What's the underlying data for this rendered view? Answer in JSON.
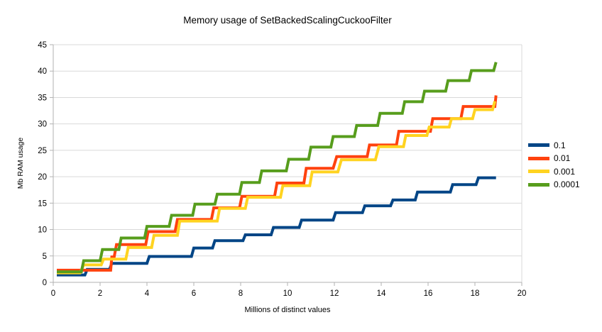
{
  "chart_data": {
    "type": "line",
    "title": "Memory usage of SetBackedScalingCuckooFilter",
    "xlabel": "Millions of distinct values",
    "ylabel": "Mb RAM usage",
    "xlim": [
      0,
      20
    ],
    "ylim": [
      0,
      45
    ],
    "x_ticks": [
      0,
      2,
      4,
      6,
      8,
      10,
      12,
      14,
      16,
      18,
      20
    ],
    "y_ticks": [
      0,
      5,
      10,
      15,
      20,
      25,
      30,
      35,
      40,
      45
    ],
    "grid": "horizontal",
    "legend_position": "right",
    "axis_color": "#b2b2b2",
    "gridline_color": "#d9d9d9",
    "line_shape": "steps",
    "series": [
      {
        "name": "0.1",
        "color": "#004586",
        "points": [
          [
            0.15,
            1.4
          ],
          [
            1.35,
            1.4
          ],
          [
            1.45,
            2.45
          ],
          [
            2.4,
            2.45
          ],
          [
            2.5,
            3.6
          ],
          [
            4.0,
            3.6
          ],
          [
            4.1,
            4.9
          ],
          [
            5.9,
            4.9
          ],
          [
            6.0,
            6.5
          ],
          [
            6.8,
            6.5
          ],
          [
            6.9,
            7.9
          ],
          [
            8.1,
            7.9
          ],
          [
            8.2,
            9.0
          ],
          [
            9.3,
            9.0
          ],
          [
            9.4,
            10.4
          ],
          [
            10.5,
            10.4
          ],
          [
            10.6,
            11.8
          ],
          [
            11.95,
            11.8
          ],
          [
            12.05,
            13.2
          ],
          [
            13.2,
            13.2
          ],
          [
            13.3,
            14.5
          ],
          [
            14.4,
            14.5
          ],
          [
            14.5,
            15.6
          ],
          [
            15.45,
            15.6
          ],
          [
            15.55,
            17.1
          ],
          [
            16.95,
            17.1
          ],
          [
            17.05,
            18.5
          ],
          [
            18.05,
            18.5
          ],
          [
            18.15,
            19.8
          ],
          [
            18.9,
            19.8
          ]
        ]
      },
      {
        "name": "0.01",
        "color": "#ff420e",
        "points": [
          [
            0.15,
            2.3
          ],
          [
            2.45,
            2.3
          ],
          [
            2.5,
            4.8
          ],
          [
            2.6,
            4.8
          ],
          [
            2.7,
            7.15
          ],
          [
            3.95,
            7.15
          ],
          [
            4.05,
            9.6
          ],
          [
            5.2,
            9.6
          ],
          [
            5.3,
            11.9
          ],
          [
            6.75,
            11.9
          ],
          [
            6.85,
            14.1
          ],
          [
            7.95,
            14.1
          ],
          [
            8.05,
            16.3
          ],
          [
            9.45,
            16.3
          ],
          [
            9.55,
            18.8
          ],
          [
            10.7,
            18.8
          ],
          [
            10.8,
            21.6
          ],
          [
            11.95,
            21.6
          ],
          [
            12.1,
            23.8
          ],
          [
            13.4,
            23.8
          ],
          [
            13.5,
            26.0
          ],
          [
            14.65,
            26.0
          ],
          [
            14.75,
            28.6
          ],
          [
            16.1,
            28.6
          ],
          [
            16.2,
            31.0
          ],
          [
            17.4,
            31.0
          ],
          [
            17.5,
            33.3
          ],
          [
            18.85,
            33.3
          ],
          [
            18.9,
            35.4
          ]
        ]
      },
      {
        "name": "0.001",
        "color": "#ffd320",
        "points": [
          [
            0.15,
            1.8
          ],
          [
            1.15,
            1.8
          ],
          [
            1.3,
            3.3
          ],
          [
            2.05,
            3.3
          ],
          [
            2.15,
            4.4
          ],
          [
            3.1,
            4.4
          ],
          [
            3.2,
            6.6
          ],
          [
            4.2,
            6.6
          ],
          [
            4.3,
            8.9
          ],
          [
            5.3,
            8.9
          ],
          [
            5.4,
            11.6
          ],
          [
            7.0,
            11.6
          ],
          [
            7.1,
            14.0
          ],
          [
            8.2,
            14.0
          ],
          [
            8.3,
            16.1
          ],
          [
            9.7,
            16.1
          ],
          [
            9.8,
            18.3
          ],
          [
            10.95,
            18.3
          ],
          [
            11.05,
            20.9
          ],
          [
            12.15,
            20.9
          ],
          [
            12.3,
            23.2
          ],
          [
            13.75,
            23.2
          ],
          [
            13.9,
            25.7
          ],
          [
            14.95,
            25.7
          ],
          [
            15.05,
            27.8
          ],
          [
            15.95,
            27.8
          ],
          [
            16.05,
            29.4
          ],
          [
            16.9,
            29.4
          ],
          [
            17.0,
            31.0
          ],
          [
            17.9,
            31.0
          ],
          [
            18.0,
            32.7
          ],
          [
            18.75,
            32.7
          ],
          [
            18.85,
            34.3
          ]
        ]
      },
      {
        "name": "0.0001",
        "color": "#579d1c",
        "points": [
          [
            0.15,
            2.0
          ],
          [
            1.2,
            2.0
          ],
          [
            1.3,
            4.1
          ],
          [
            2.0,
            4.1
          ],
          [
            2.1,
            6.2
          ],
          [
            2.8,
            6.2
          ],
          [
            2.9,
            8.4
          ],
          [
            3.9,
            8.4
          ],
          [
            4.0,
            10.6
          ],
          [
            4.95,
            10.6
          ],
          [
            5.05,
            12.7
          ],
          [
            5.95,
            12.7
          ],
          [
            6.05,
            14.8
          ],
          [
            6.9,
            14.8
          ],
          [
            7.0,
            16.7
          ],
          [
            7.95,
            16.7
          ],
          [
            8.05,
            18.9
          ],
          [
            8.8,
            18.9
          ],
          [
            8.9,
            21.1
          ],
          [
            9.95,
            21.1
          ],
          [
            10.05,
            23.3
          ],
          [
            10.9,
            23.3
          ],
          [
            11.0,
            25.6
          ],
          [
            11.85,
            25.6
          ],
          [
            11.95,
            27.6
          ],
          [
            12.85,
            27.6
          ],
          [
            12.95,
            29.7
          ],
          [
            13.85,
            29.7
          ],
          [
            13.95,
            32.0
          ],
          [
            14.9,
            32.0
          ],
          [
            15.0,
            34.2
          ],
          [
            15.75,
            34.2
          ],
          [
            15.85,
            36.2
          ],
          [
            16.75,
            36.2
          ],
          [
            16.85,
            38.2
          ],
          [
            17.75,
            38.2
          ],
          [
            17.85,
            40.1
          ],
          [
            18.8,
            40.1
          ],
          [
            18.9,
            41.7
          ]
        ]
      }
    ]
  }
}
